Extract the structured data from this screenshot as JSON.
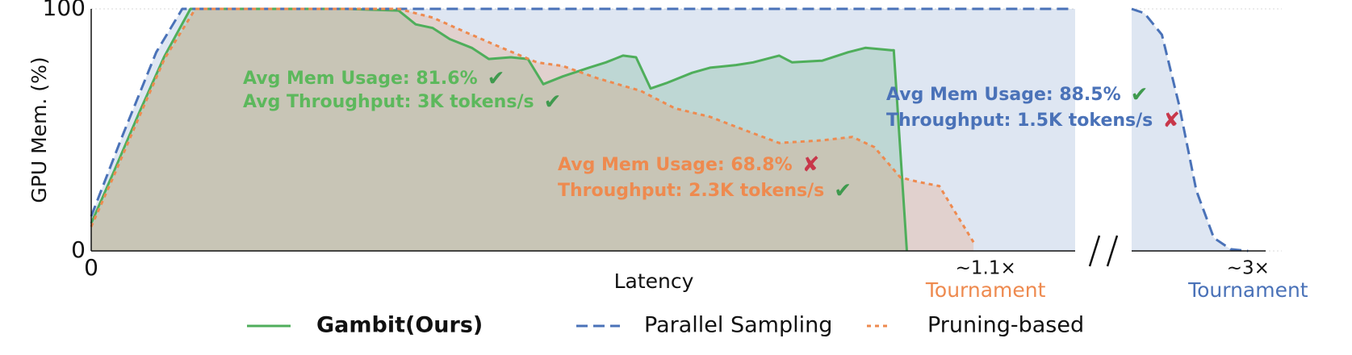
{
  "chart_data": {
    "type": "line",
    "x_label": "Latency",
    "y_label": "GPU Mem. (%)",
    "ylim": [
      0,
      100
    ],
    "yticks": [
      0,
      100
    ],
    "grid": true,
    "broken_axis": true,
    "xlim": [
      [
        0,
        1.21
      ],
      [
        2.8,
        3.03
      ]
    ],
    "xticks": [
      0,
      {
        "value": 1.1,
        "label": "~1.1×"
      },
      {
        "value": 3,
        "label": "~3×"
      }
    ],
    "xtick_colors": [
      "#111111",
      "#ee8a4f",
      "#4a72b8"
    ],
    "xtick_notes": [
      {
        "value": 1.1,
        "text": "Tournament",
        "color": "#ee8a4f"
      },
      {
        "value": 3,
        "text": "Tournament",
        "color": "#4a72b8"
      }
    ],
    "series": [
      {
        "name": "Gambit(Ours)",
        "color": "#4fae5b",
        "dash": "solid",
        "legend_bold": true,
        "fill": true,
        "x": [
          0,
          0.027,
          0.059,
          0.09,
          0.122,
          0.207,
          0.314,
          0.378,
          0.399,
          0.42,
          0.441,
          0.468,
          0.489,
          0.516,
          0.537,
          0.556,
          0.58,
          0.612,
          0.633,
          0.654,
          0.67,
          0.688,
          0.707,
          0.739,
          0.761,
          0.793,
          0.814,
          0.846,
          0.862,
          0.899,
          0.931,
          0.952,
          0.984,
          0.987,
          1.003
        ],
        "values": [
          11.4,
          32.1,
          57.1,
          80.4,
          100,
          100,
          100,
          99.3,
          93.6,
          92.1,
          87.5,
          83.9,
          79.3,
          80,
          79.3,
          68.9,
          72.1,
          75.7,
          77.9,
          80.7,
          80,
          67.1,
          69.3,
          73.6,
          75.7,
          76.8,
          77.9,
          80.7,
          77.9,
          78.6,
          82.1,
          83.9,
          82.9,
          82.9,
          0
        ]
      },
      {
        "name": "Parallel Sampling",
        "color": "#4a72b8",
        "dash": "dashed",
        "legend_bold": false,
        "fill": true,
        "x": [
          0,
          0.037,
          0.08,
          0.112,
          1.207,
          2.8,
          2.822,
          2.852,
          2.881,
          2.911,
          2.941,
          2.97,
          3.0
        ],
        "values": [
          14.3,
          46.4,
          82.1,
          100,
          100,
          100,
          98.2,
          89.3,
          60.7,
          25,
          5.4,
          0.7,
          0
        ]
      },
      {
        "name": "Pruning-based",
        "color": "#ee8a4f",
        "dash": "dotted",
        "legend_bold": false,
        "fill": true,
        "x": [
          0,
          0.027,
          0.059,
          0.09,
          0.128,
          0.378,
          0.42,
          0.463,
          0.505,
          0.548,
          0.58,
          0.622,
          0.676,
          0.718,
          0.761,
          0.803,
          0.846,
          0.899,
          0.936,
          0.963,
          0.995,
          1.016,
          1.043,
          1.059,
          1.085
        ],
        "values": [
          10,
          30.4,
          55.4,
          79.3,
          100,
          100,
          96.4,
          90,
          83.9,
          77.9,
          76.4,
          71.4,
          66.1,
          58.9,
          55.4,
          50,
          44.6,
          45.7,
          47.1,
          42.9,
          30.4,
          28.6,
          26.8,
          17.9,
          3.6
        ]
      }
    ],
    "annotations": [
      {
        "text": "Avg Mem Usage: 81.6%",
        "color": "#5cb85c",
        "symbol": "✔",
        "symbol_color": "#3f9a4e"
      },
      {
        "text": "Avg Throughput: 3K tokens/s",
        "color": "#5cb85c",
        "symbol": "✔",
        "symbol_color": "#3f9a4e"
      },
      {
        "text": "Avg Mem Usage: 68.8%",
        "color": "#ee8a4f",
        "symbol": "✘",
        "symbol_color": "#c8374a"
      },
      {
        "text": "Throughput: 2.3K tokens/s",
        "color": "#ee8a4f",
        "symbol": "✔",
        "symbol_color": "#3f9a4e"
      },
      {
        "text": "Avg Mem Usage: 88.5%",
        "color": "#4a72b8",
        "symbol": "✔",
        "symbol_color": "#3f9a4e"
      },
      {
        "text": "Throughput: 1.5K tokens/s",
        "color": "#4a72b8",
        "symbol": "✘",
        "symbol_color": "#c8374a"
      }
    ]
  }
}
